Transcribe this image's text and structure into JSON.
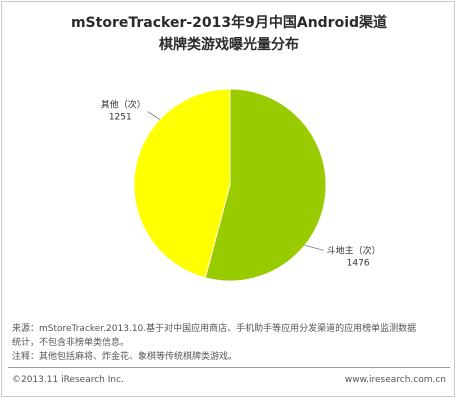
{
  "chart_data": {
    "type": "pie",
    "title": "mStoreTracker-2013年9月中国Android渠道",
    "subtitle": "棋牌类游戏曝光量分布",
    "slices": [
      {
        "label": "斗地主（次）",
        "value": 1476,
        "color": "#99cc00"
      },
      {
        "label": "其他（次）",
        "value": 1251,
        "color": "#ffff00"
      }
    ]
  },
  "notes": {
    "line1": "来源：mStoreTracker.2013.10.基于对中国应用商店、手机助手等应用分发渠道的应用榜单监测数据",
    "line2": "统计，不包含非榜单类信息。",
    "line3": "注释：其他包括麻将、炸金花、象棋等传统棋牌类游戏。"
  },
  "footer": {
    "copyright": "©2013.11 iResearch Inc.",
    "website": "www.iresearch.com.cn"
  }
}
